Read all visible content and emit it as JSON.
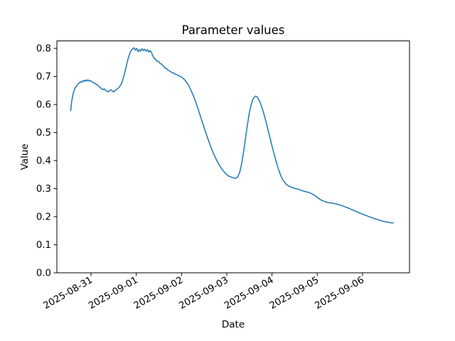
{
  "figure_title": "Parameter values",
  "chart_data": {
    "type": "line",
    "title": "Parameter values",
    "xlabel": "Date",
    "ylabel": "Value",
    "grid": false,
    "legend": null,
    "line_color": "#1f77b4",
    "line_width": 1.5,
    "x_unit": "days relative to 2025-08-31 00:00",
    "x_tick_positions": [
      0,
      1,
      2,
      3,
      4,
      5,
      6
    ],
    "x_tick_labels": [
      "2025-08-31",
      "2025-09-01",
      "2025-09-02",
      "2025-09-03",
      "2025-09-04",
      "2025-09-05",
      "2025-09-06"
    ],
    "x_tick_rotation_deg": 30,
    "y_tick_values": [
      0.0,
      0.1,
      0.2,
      0.3,
      0.4,
      0.5,
      0.6,
      0.7,
      0.8
    ],
    "y_tick_labels": [
      "0.0",
      "0.1",
      "0.2",
      "0.3",
      "0.4",
      "0.5",
      "0.6",
      "0.7",
      "0.8"
    ],
    "xlim_days": [
      -0.754,
      7.038
    ],
    "ylim": [
      0,
      0.8266
    ],
    "series": [
      {
        "name": "Value",
        "points": [
          [
            -0.448,
            0.578
          ],
          [
            -0.435,
            0.601
          ],
          [
            -0.42,
            0.617
          ],
          [
            -0.405,
            0.63
          ],
          [
            -0.39,
            0.641
          ],
          [
            -0.37,
            0.652
          ],
          [
            -0.35,
            0.659
          ],
          [
            -0.33,
            0.663
          ],
          [
            -0.31,
            0.669
          ],
          [
            -0.29,
            0.672
          ],
          [
            -0.27,
            0.676
          ],
          [
            -0.25,
            0.678
          ],
          [
            -0.23,
            0.681
          ],
          [
            -0.21,
            0.679
          ],
          [
            -0.19,
            0.684
          ],
          [
            -0.17,
            0.682
          ],
          [
            -0.15,
            0.686
          ],
          [
            -0.13,
            0.683
          ],
          [
            -0.11,
            0.687
          ],
          [
            -0.09,
            0.684
          ],
          [
            -0.07,
            0.688
          ],
          [
            -0.05,
            0.685
          ],
          [
            -0.03,
            0.683
          ],
          [
            -0.01,
            0.685
          ],
          [
            0.02,
            0.681
          ],
          [
            0.05,
            0.678
          ],
          [
            0.08,
            0.676
          ],
          [
            0.11,
            0.673
          ],
          [
            0.14,
            0.67
          ],
          [
            0.17,
            0.665
          ],
          [
            0.2,
            0.661
          ],
          [
            0.23,
            0.657
          ],
          [
            0.26,
            0.653
          ],
          [
            0.29,
            0.656
          ],
          [
            0.32,
            0.65
          ],
          [
            0.35,
            0.648
          ],
          [
            0.38,
            0.645
          ],
          [
            0.41,
            0.649
          ],
          [
            0.44,
            0.653
          ],
          [
            0.47,
            0.648
          ],
          [
            0.5,
            0.645
          ],
          [
            0.53,
            0.65
          ],
          [
            0.56,
            0.653
          ],
          [
            0.59,
            0.657
          ],
          [
            0.62,
            0.661
          ],
          [
            0.65,
            0.668
          ],
          [
            0.68,
            0.677
          ],
          [
            0.71,
            0.692
          ],
          [
            0.74,
            0.71
          ],
          [
            0.77,
            0.73
          ],
          [
            0.8,
            0.751
          ],
          [
            0.83,
            0.769
          ],
          [
            0.86,
            0.783
          ],
          [
            0.89,
            0.793
          ],
          [
            0.92,
            0.799
          ],
          [
            0.95,
            0.802
          ],
          [
            0.98,
            0.794
          ],
          [
            1.01,
            0.8
          ],
          [
            1.04,
            0.788
          ],
          [
            1.07,
            0.796
          ],
          [
            1.1,
            0.79
          ],
          [
            1.13,
            0.799
          ],
          [
            1.16,
            0.792
          ],
          [
            1.19,
            0.797
          ],
          [
            1.22,
            0.79
          ],
          [
            1.25,
            0.795
          ],
          [
            1.28,
            0.787
          ],
          [
            1.31,
            0.792
          ],
          [
            1.34,
            0.784
          ],
          [
            1.37,
            0.772
          ],
          [
            1.4,
            0.764
          ],
          [
            1.43,
            0.761
          ],
          [
            1.46,
            0.753
          ],
          [
            1.49,
            0.754
          ],
          [
            1.52,
            0.747
          ],
          [
            1.55,
            0.745
          ],
          [
            1.58,
            0.74
          ],
          [
            1.61,
            0.736
          ],
          [
            1.64,
            0.729
          ],
          [
            1.67,
            0.728
          ],
          [
            1.71,
            0.721
          ],
          [
            1.75,
            0.719
          ],
          [
            1.79,
            0.713
          ],
          [
            1.83,
            0.712
          ],
          [
            1.87,
            0.707
          ],
          [
            1.91,
            0.706
          ],
          [
            1.95,
            0.701
          ],
          [
            2,
            0.698
          ],
          [
            2.05,
            0.691
          ],
          [
            2.1,
            0.682
          ],
          [
            2.15,
            0.67
          ],
          [
            2.2,
            0.654
          ],
          [
            2.25,
            0.636
          ],
          [
            2.3,
            0.615
          ],
          [
            2.35,
            0.592
          ],
          [
            2.4,
            0.567
          ],
          [
            2.45,
            0.542
          ],
          [
            2.5,
            0.517
          ],
          [
            2.55,
            0.493
          ],
          [
            2.6,
            0.47
          ],
          [
            2.65,
            0.448
          ],
          [
            2.7,
            0.428
          ],
          [
            2.75,
            0.41
          ],
          [
            2.8,
            0.394
          ],
          [
            2.85,
            0.38
          ],
          [
            2.9,
            0.368
          ],
          [
            2.95,
            0.358
          ],
          [
            3,
            0.35
          ],
          [
            3.05,
            0.344
          ],
          [
            3.1,
            0.341
          ],
          [
            3.15,
            0.338
          ],
          [
            3.2,
            0.337
          ],
          [
            3.24,
            0.341
          ],
          [
            3.29,
            0.36
          ],
          [
            3.33,
            0.39
          ],
          [
            3.37,
            0.43
          ],
          [
            3.41,
            0.475
          ],
          [
            3.45,
            0.52
          ],
          [
            3.49,
            0.562
          ],
          [
            3.53,
            0.594
          ],
          [
            3.57,
            0.615
          ],
          [
            3.61,
            0.627
          ],
          [
            3.64,
            0.63
          ],
          [
            3.67,
            0.627
          ],
          [
            3.7,
            0.62
          ],
          [
            3.73,
            0.61
          ],
          [
            3.76,
            0.597
          ],
          [
            3.8,
            0.578
          ],
          [
            3.84,
            0.555
          ],
          [
            3.88,
            0.53
          ],
          [
            3.92,
            0.504
          ],
          [
            3.96,
            0.478
          ],
          [
            4,
            0.452
          ],
          [
            4.04,
            0.427
          ],
          [
            4.08,
            0.403
          ],
          [
            4.12,
            0.381
          ],
          [
            4.16,
            0.361
          ],
          [
            4.2,
            0.344
          ],
          [
            4.24,
            0.331
          ],
          [
            4.28,
            0.322
          ],
          [
            4.32,
            0.315
          ],
          [
            4.36,
            0.31
          ],
          [
            4.4,
            0.307
          ],
          [
            4.45,
            0.304
          ],
          [
            4.5,
            0.301
          ],
          [
            4.55,
            0.299
          ],
          [
            4.6,
            0.297
          ],
          [
            4.65,
            0.294
          ],
          [
            4.7,
            0.291
          ],
          [
            4.75,
            0.289
          ],
          [
            4.8,
            0.287
          ],
          [
            4.85,
            0.284
          ],
          [
            4.9,
            0.28
          ],
          [
            4.95,
            0.275
          ],
          [
            5,
            0.269
          ],
          [
            5.05,
            0.263
          ],
          [
            5.1,
            0.258
          ],
          [
            5.15,
            0.255
          ],
          [
            5.2,
            0.252
          ],
          [
            5.25,
            0.25
          ],
          [
            5.3,
            0.249
          ],
          [
            5.35,
            0.248
          ],
          [
            5.4,
            0.246
          ],
          [
            5.45,
            0.244
          ],
          [
            5.5,
            0.242
          ],
          [
            5.55,
            0.239
          ],
          [
            5.6,
            0.236
          ],
          [
            5.65,
            0.233
          ],
          [
            5.7,
            0.23
          ],
          [
            5.75,
            0.226
          ],
          [
            5.8,
            0.223
          ],
          [
            5.85,
            0.219
          ],
          [
            5.9,
            0.216
          ],
          [
            5.95,
            0.212
          ],
          [
            6,
            0.209
          ],
          [
            6.05,
            0.206
          ],
          [
            6.1,
            0.203
          ],
          [
            6.15,
            0.2
          ],
          [
            6.2,
            0.197
          ],
          [
            6.25,
            0.194
          ],
          [
            6.3,
            0.191
          ],
          [
            6.35,
            0.189
          ],
          [
            6.4,
            0.186
          ],
          [
            6.45,
            0.184
          ],
          [
            6.5,
            0.182
          ],
          [
            6.55,
            0.181
          ],
          [
            6.6,
            0.179
          ],
          [
            6.65,
            0.178
          ],
          [
            6.68,
            0.178
          ]
        ]
      }
    ]
  }
}
